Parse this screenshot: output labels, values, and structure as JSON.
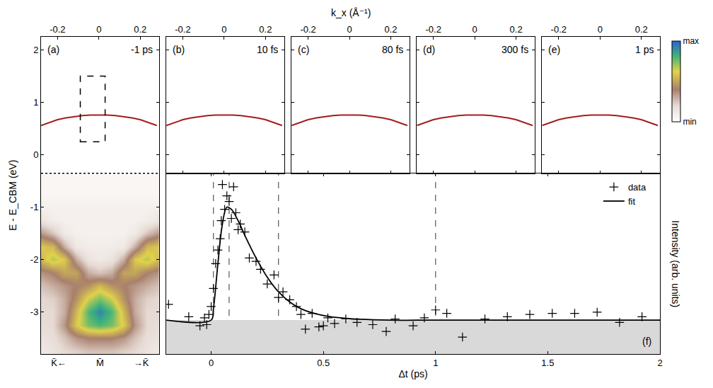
{
  "chart_data": {
    "type": "multi-panel",
    "x_label_top": "k_x (Å⁻¹)",
    "y_label": "E - E_CBM (eV)",
    "band_panels": {
      "type": "line",
      "xlim": [
        -0.28,
        0.29
      ],
      "xticks": [
        -0.2,
        0,
        0.2
      ],
      "ylim": [
        -0.35,
        2.25
      ],
      "yticks": [
        0,
        1,
        2
      ],
      "band": {
        "color": "#a51d1d",
        "x": [
          -0.28,
          -0.24,
          -0.2,
          -0.16,
          -0.12,
          -0.08,
          -0.04,
          0,
          0.04,
          0.08,
          0.12,
          0.16,
          0.2,
          0.24,
          0.28
        ],
        "values": [
          0.56,
          0.62,
          0.67,
          0.705,
          0.73,
          0.75,
          0.76,
          0.765,
          0.76,
          0.75,
          0.73,
          0.705,
          0.67,
          0.62,
          0.56
        ]
      },
      "panels": [
        {
          "label": "(a)",
          "time": "-1 ps"
        },
        {
          "label": "(b)",
          "time": "10 fs"
        },
        {
          "label": "(c)",
          "time": "80 fs"
        },
        {
          "label": "(d)",
          "time": "300 fs"
        },
        {
          "label": "(e)",
          "time": "1 ps"
        }
      ],
      "box": {
        "panel": "(a)",
        "x": [
          -0.09,
          0.03
        ],
        "y": [
          0.25,
          1.5
        ],
        "line_style": "dashed"
      }
    },
    "band_map": {
      "type": "heatmap",
      "xlim": [
        -1,
        1
      ],
      "xticks": [
        {
          "value": -0.7,
          "label": "K̄←"
        },
        {
          "value": 0,
          "label": "M̄"
        },
        {
          "value": 0.7,
          "label": "→K̄"
        }
      ],
      "ylim": [
        -3.8,
        -0.35
      ],
      "yticks": [
        -1,
        -2,
        -3
      ],
      "x": [
        -1,
        -0.8,
        -0.6,
        -0.4,
        -0.2,
        0,
        0.2,
        0.4,
        0.6,
        0.8,
        1
      ],
      "y": [
        -0.5,
        -0.75,
        -1.0,
        -1.25,
        -1.5,
        -1.75,
        -2.0,
        -2.25,
        -2.5,
        -2.75,
        -3.0,
        -3.25,
        -3.5,
        -3.75
      ],
      "cells": [
        [
          0.05,
          0.05,
          0.05,
          0.05,
          0.05,
          0.05,
          0.05,
          0.05,
          0.05,
          0.05,
          0.05
        ],
        [
          0.05,
          0.05,
          0.05,
          0.05,
          0.05,
          0.05,
          0.05,
          0.05,
          0.05,
          0.05,
          0.05
        ],
        [
          0.08,
          0.08,
          0.08,
          0.08,
          0.08,
          0.08,
          0.08,
          0.08,
          0.08,
          0.08,
          0.08
        ],
        [
          0.15,
          0.1,
          0.08,
          0.08,
          0.08,
          0.08,
          0.08,
          0.08,
          0.08,
          0.1,
          0.15
        ],
        [
          0.35,
          0.25,
          0.12,
          0.08,
          0.08,
          0.08,
          0.08,
          0.08,
          0.12,
          0.25,
          0.35
        ],
        [
          0.6,
          0.55,
          0.3,
          0.12,
          0.1,
          0.1,
          0.1,
          0.12,
          0.3,
          0.55,
          0.6
        ],
        [
          0.55,
          0.68,
          0.6,
          0.3,
          0.15,
          0.12,
          0.15,
          0.3,
          0.6,
          0.68,
          0.55
        ],
        [
          0.35,
          0.4,
          0.5,
          0.5,
          0.3,
          0.25,
          0.3,
          0.5,
          0.5,
          0.4,
          0.35
        ],
        [
          0.25,
          0.3,
          0.35,
          0.4,
          0.45,
          0.55,
          0.45,
          0.4,
          0.35,
          0.3,
          0.25
        ],
        [
          0.2,
          0.22,
          0.3,
          0.45,
          0.65,
          0.75,
          0.65,
          0.45,
          0.3,
          0.22,
          0.2
        ],
        [
          0.2,
          0.2,
          0.3,
          0.55,
          0.8,
          0.92,
          0.8,
          0.55,
          0.3,
          0.2,
          0.2
        ],
        [
          0.18,
          0.2,
          0.35,
          0.6,
          0.75,
          0.8,
          0.75,
          0.6,
          0.35,
          0.2,
          0.18
        ],
        [
          0.15,
          0.18,
          0.25,
          0.35,
          0.4,
          0.4,
          0.4,
          0.35,
          0.25,
          0.18,
          0.15
        ],
        [
          0.12,
          0.15,
          0.2,
          0.22,
          0.25,
          0.25,
          0.25,
          0.22,
          0.2,
          0.15,
          0.12
        ]
      ],
      "colorbar": {
        "range": [
          0,
          1
        ],
        "ticks": [
          {
            "value": 0,
            "label": "min"
          },
          {
            "value": 1,
            "label": "max"
          }
        ]
      }
    },
    "trace": {
      "type": "scatter",
      "label": "(f)",
      "x_label": "Δt (ps)",
      "y_label": "Intensity (arb. units)",
      "xlim": [
        -0.2,
        2
      ],
      "xticks": [
        0,
        0.5,
        1,
        1.5,
        2
      ],
      "ylim": [
        -0.3,
        1.3
      ],
      "tick_labels": "x",
      "legend": "upper right",
      "baseline": 0,
      "vlines": [
        0.01,
        0.08,
        0.3,
        1
      ],
      "series": [
        {
          "name": "data",
          "type": "scatter",
          "marker": "cross",
          "color": "#000000",
          "x": [
            -0.19,
            -0.1,
            -0.05,
            -0.03,
            -0.02,
            -0.01,
            0.0,
            0.01,
            0.02,
            0.03,
            0.04,
            0.045,
            0.05,
            0.06,
            0.07,
            0.08,
            0.09,
            0.1,
            0.11,
            0.12,
            0.13,
            0.15,
            0.17,
            0.2,
            0.22,
            0.25,
            0.28,
            0.3,
            0.32,
            0.35,
            0.38,
            0.4,
            0.42,
            0.45,
            0.48,
            0.5,
            0.52,
            0.55,
            0.6,
            0.65,
            0.72,
            0.78,
            0.82,
            0.9,
            0.95,
            1.0,
            1.05,
            1.12,
            1.22,
            1.32,
            1.42,
            1.52,
            1.62,
            1.72,
            1.82,
            1.92
          ],
          "values": [
            0.14,
            0.03,
            -0.05,
            0.02,
            -0.04,
            0.05,
            0.12,
            0.28,
            0.5,
            0.62,
            0.72,
            0.88,
            1.2,
            0.98,
            1.1,
            1.05,
            0.9,
            1.18,
            0.95,
            0.8,
            0.85,
            0.78,
            0.55,
            0.52,
            0.45,
            0.32,
            0.4,
            0.2,
            0.25,
            0.18,
            0.12,
            0.05,
            -0.08,
            0.06,
            -0.06,
            -0.05,
            0.02,
            -0.03,
            0.01,
            -0.02,
            -0.04,
            -0.1,
            0.01,
            -0.05,
            0.02,
            0.09,
            0.06,
            -0.15,
            0.01,
            0.03,
            0.05,
            0.06,
            0.06,
            0.07,
            -0.02,
            0.03
          ]
        },
        {
          "name": "fit",
          "type": "line",
          "line_style": "solid",
          "color": "#000000",
          "x": [
            -0.2,
            0,
            0.01,
            0.03,
            0.05,
            0.07,
            0.09,
            0.12,
            0.15,
            0.2,
            0.25,
            0.3,
            0.35,
            0.4,
            0.5,
            0.6,
            0.8,
            1,
            1.5,
            2
          ],
          "values": [
            0,
            0,
            0.1,
            0.5,
            0.85,
            1.0,
            0.98,
            0.88,
            0.75,
            0.55,
            0.38,
            0.25,
            0.16,
            0.1,
            0.04,
            0.015,
            0,
            0,
            0,
            0
          ]
        }
      ]
    }
  }
}
